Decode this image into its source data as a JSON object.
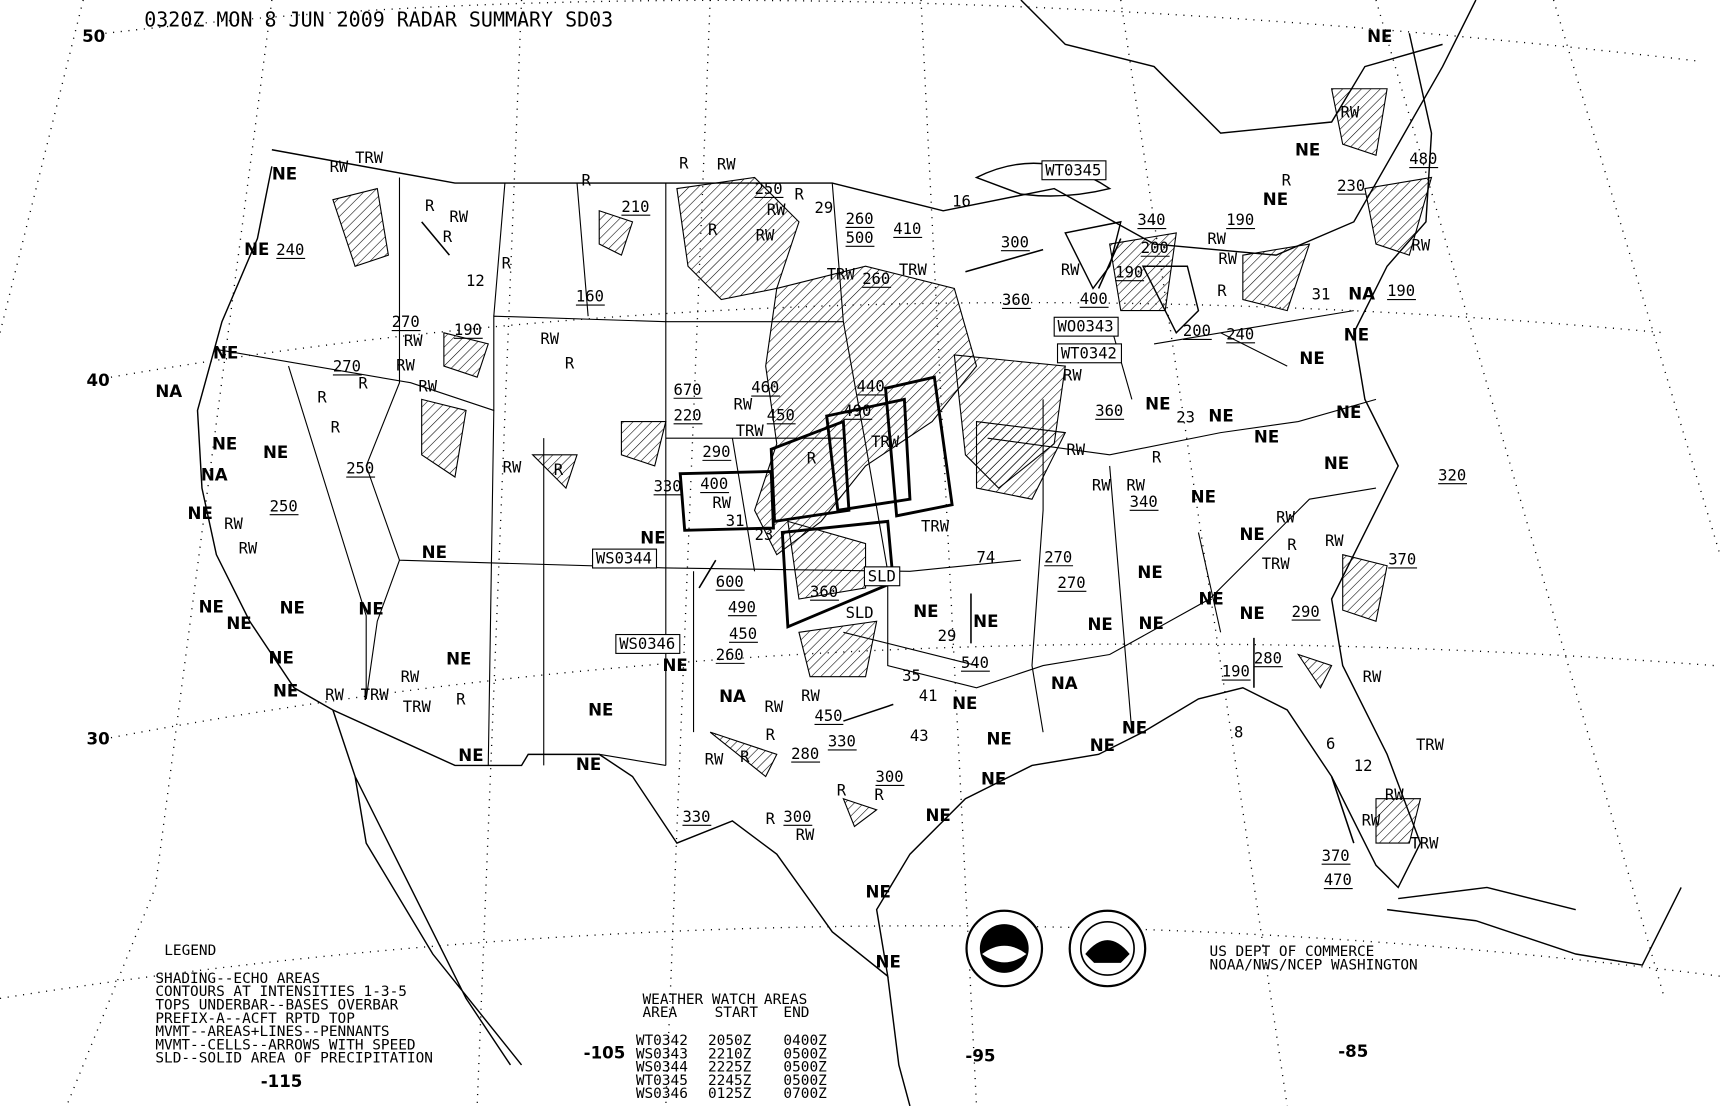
{
  "header": {
    "title": "0320Z MON  8 JUN 2009 RADAR SUMMARY SD03"
  },
  "axes": {
    "latitudes": [
      "50",
      "40",
      "30"
    ],
    "longitudes": [
      "-115",
      "-105",
      "-95",
      "-85"
    ]
  },
  "legend": {
    "heading": "LEGEND",
    "lines": [
      "SHADING--ECHO AREAS",
      "CONTOURS AT INTENSITIES 1-3-5",
      "TOPS UNDERBAR--BASES OVERBAR",
      "PREFIX-A--ACFT RPTD TOP",
      "MVMT--AREAS+LINES--PENNANTS",
      "MVMT--CELLS--ARROWS WITH SPEED",
      "SLD--SOLID AREA OF PRECIPITATION"
    ]
  },
  "watch_table": {
    "heading": "WEATHER WATCH AREAS",
    "columns": [
      "AREA",
      "START",
      "END"
    ],
    "rows": [
      [
        "WT0342",
        "2050Z",
        "0400Z"
      ],
      [
        "WS0343",
        "2210Z",
        "0500Z"
      ],
      [
        "WS0344",
        "2225Z",
        "0500Z"
      ],
      [
        "WT0345",
        "2245Z",
        "0500Z"
      ],
      [
        "WS0346",
        "0125Z",
        "0700Z"
      ]
    ]
  },
  "credits": {
    "line1": "US DEPT OF COMMERCE",
    "line2": "NOAA/NWS/NCEP WASHINGTON",
    "logos": [
      "NOAA",
      "NATIONAL WEATHER SERVICE"
    ]
  },
  "map": {
    "labels": [
      "NE",
      "RW",
      "480",
      "NE",
      "230",
      "NE",
      "190",
      "RW",
      "R",
      "340",
      "200",
      "RW",
      "190",
      "RW",
      "R",
      "31",
      "NA",
      "190",
      "200",
      "240",
      "NE",
      "NE",
      "WT0345",
      "16",
      "29",
      "260",
      "500",
      "410",
      "300",
      "RW",
      "400",
      "360",
      "WO0343",
      "WT0342",
      "RW",
      "360",
      "NE",
      "23",
      "NE",
      "RW",
      "RW",
      "R",
      "RW",
      "340",
      "NE",
      "NE",
      "NE",
      "NE",
      "320",
      "NE",
      "RW",
      "R",
      "RW",
      "TRW",
      "370",
      "NE",
      "NE",
      "290",
      "280",
      "190",
      "RW",
      "8",
      "6",
      "12",
      "TRW",
      "RW",
      "RW",
      "TRW",
      "370",
      "470",
      "NE",
      "TRW",
      "RW",
      "NE",
      "240",
      "R",
      "RW",
      "R",
      "12",
      "R",
      "160",
      "210",
      "R",
      "RW",
      "R",
      "250",
      "RW",
      "R",
      "RW",
      "R",
      "TRW",
      "260",
      "TRW",
      "270",
      "RW",
      "190",
      "270",
      "RW",
      "R",
      "RW",
      "NE",
      "NA",
      "R",
      "R",
      "250",
      "NE",
      "NE",
      "NA",
      "NE",
      "RW",
      "250",
      "RW",
      "NE",
      "RW",
      "R",
      "RW",
      "R",
      "670",
      "RW",
      "460",
      "220",
      "TRW",
      "450",
      "440",
      "490",
      "290",
      "400",
      "RW",
      "330",
      "NE",
      "31",
      "23",
      "WS0344",
      "600",
      "490",
      "450",
      "260",
      "WS0346",
      "NE",
      "NA",
      "NE",
      "RW",
      "RW",
      "450",
      "330",
      "R",
      "280",
      "R",
      "RW",
      "300",
      "R",
      "R",
      "330",
      "R",
      "300",
      "RW",
      "NE",
      "NE",
      "TRW",
      "74",
      "270",
      "270",
      "NE",
      "NE",
      "NE",
      "NE",
      "29",
      "540",
      "NE",
      "NA",
      "NE",
      "NE",
      "NE",
      "NE",
      "NE",
      "NE",
      "NE",
      "NE",
      "43",
      "35",
      "41",
      "SLD",
      "SLD",
      "360",
      "TRW",
      "R",
      "NE",
      "NE",
      "NE",
      "NE",
      "NE",
      "NE",
      "RW",
      "TRW",
      "RW",
      "TRW",
      "NE",
      "R"
    ]
  }
}
